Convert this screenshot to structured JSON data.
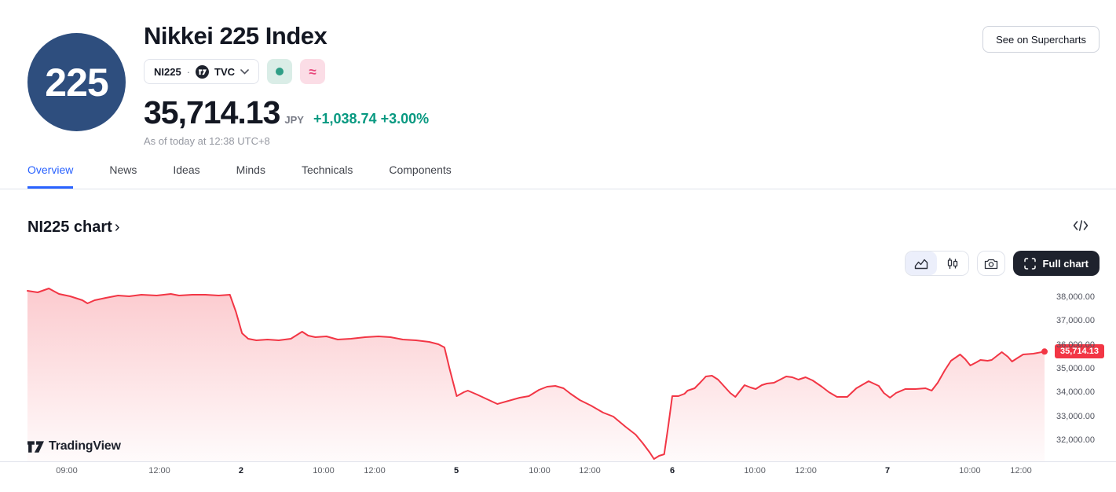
{
  "header": {
    "logo_text": "225",
    "title": "Nikkei 225 Index",
    "symbol": "NI225",
    "symbol_separator": "·",
    "exchange": "TVC",
    "price": "35,714.13",
    "currency": "JPY",
    "change": "+1,038.74",
    "change_pct": "+3.00%",
    "as_of": "As of today at 12:38 UTC+8",
    "supercharts_button": "See on Supercharts",
    "market_status_icon": "open-dot",
    "approx_badge": "≈"
  },
  "tabs": {
    "active": "Overview",
    "items": [
      {
        "label": "Overview"
      },
      {
        "label": "News"
      },
      {
        "label": "Ideas"
      },
      {
        "label": "Minds"
      },
      {
        "label": "Technicals"
      },
      {
        "label": "Components"
      }
    ]
  },
  "section": {
    "heading": "NI225 chart",
    "chevron": "›"
  },
  "toolbar": {
    "full_chart_label": "Full chart"
  },
  "watermark": {
    "brand": "TradingView"
  },
  "colors": {
    "accent_blue": "#2962ff",
    "up_green": "#089981",
    "down_red": "#f23645",
    "logo_navy": "#2e4e7e",
    "dark_button": "#1e222d",
    "border_gray": "#e0e3eb",
    "muted_text": "#787b86"
  },
  "chart_data": {
    "type": "area",
    "title": "NI225 chart",
    "line_color": "#f23645",
    "fill_color": "#f23645",
    "grid": false,
    "legend": "none",
    "last_price": {
      "label": "35,714.13",
      "value": 35714.13
    },
    "y_axis": {
      "min": 31110,
      "max": 38527,
      "ticks": [
        {
          "label": "38,000.00",
          "value": 38000
        },
        {
          "label": "37,000.00",
          "value": 37000
        },
        {
          "label": "36,000.00",
          "value": 36000
        },
        {
          "label": "35,000.00",
          "value": 35000
        },
        {
          "label": "34,000.00",
          "value": 34000
        },
        {
          "label": "33,000.00",
          "value": 33000
        },
        {
          "label": "32,000.00",
          "value": 32000
        }
      ]
    },
    "x_ticks": [
      {
        "label": "09:00",
        "f": 0.0386,
        "day": false
      },
      {
        "label": "12:00",
        "f": 0.1297,
        "day": false
      },
      {
        "label": "2",
        "f": 0.21,
        "day": true
      },
      {
        "label": "10:00",
        "f": 0.2911,
        "day": false
      },
      {
        "label": "12:00",
        "f": 0.3413,
        "day": false
      },
      {
        "label": "5",
        "f": 0.4216,
        "day": true
      },
      {
        "label": "10:00",
        "f": 0.5035,
        "day": false
      },
      {
        "label": "12:00",
        "f": 0.5529,
        "day": false
      },
      {
        "label": "6",
        "f": 0.634,
        "day": true
      },
      {
        "label": "10:00",
        "f": 0.7151,
        "day": false
      },
      {
        "label": "12:00",
        "f": 0.7653,
        "day": false
      },
      {
        "label": "7",
        "f": 0.8456,
        "day": true
      },
      {
        "label": "10:00",
        "f": 0.9266,
        "day": false
      },
      {
        "label": "12:00",
        "f": 0.9768,
        "day": false
      }
    ],
    "points": [
      [
        0.0,
        38264
      ],
      [
        0.01,
        38198
      ],
      [
        0.021,
        38363
      ],
      [
        0.031,
        38132
      ],
      [
        0.042,
        38033
      ],
      [
        0.054,
        37868
      ],
      [
        0.059,
        37736
      ],
      [
        0.066,
        37868
      ],
      [
        0.077,
        37967
      ],
      [
        0.089,
        38066
      ],
      [
        0.1,
        38033
      ],
      [
        0.112,
        38099
      ],
      [
        0.127,
        38066
      ],
      [
        0.141,
        38132
      ],
      [
        0.149,
        38066
      ],
      [
        0.162,
        38099
      ],
      [
        0.175,
        38099
      ],
      [
        0.188,
        38066
      ],
      [
        0.199,
        38099
      ],
      [
        0.205,
        37374
      ],
      [
        0.211,
        36484
      ],
      [
        0.217,
        36253
      ],
      [
        0.225,
        36187
      ],
      [
        0.236,
        36220
      ],
      [
        0.247,
        36187
      ],
      [
        0.259,
        36253
      ],
      [
        0.27,
        36550
      ],
      [
        0.276,
        36385
      ],
      [
        0.283,
        36319
      ],
      [
        0.294,
        36352
      ],
      [
        0.305,
        36220
      ],
      [
        0.318,
        36253
      ],
      [
        0.332,
        36319
      ],
      [
        0.345,
        36352
      ],
      [
        0.357,
        36319
      ],
      [
        0.369,
        36220
      ],
      [
        0.382,
        36187
      ],
      [
        0.395,
        36121
      ],
      [
        0.404,
        36022
      ],
      [
        0.41,
        35890
      ],
      [
        0.415,
        35000
      ],
      [
        0.422,
        33846
      ],
      [
        0.429,
        34011
      ],
      [
        0.433,
        34077
      ],
      [
        0.442,
        33912
      ],
      [
        0.452,
        33714
      ],
      [
        0.462,
        33516
      ],
      [
        0.473,
        33648
      ],
      [
        0.484,
        33780
      ],
      [
        0.493,
        33846
      ],
      [
        0.503,
        34110
      ],
      [
        0.511,
        34242
      ],
      [
        0.519,
        34275
      ],
      [
        0.527,
        34176
      ],
      [
        0.534,
        33945
      ],
      [
        0.543,
        33681
      ],
      [
        0.554,
        33450
      ],
      [
        0.566,
        33154
      ],
      [
        0.576,
        32989
      ],
      [
        0.588,
        32560
      ],
      [
        0.598,
        32231
      ],
      [
        0.605,
        31868
      ],
      [
        0.612,
        31472
      ],
      [
        0.616,
        31209
      ],
      [
        0.621,
        31340
      ],
      [
        0.626,
        31406
      ],
      [
        0.63,
        32593
      ],
      [
        0.634,
        33846
      ],
      [
        0.64,
        33846
      ],
      [
        0.646,
        33945
      ],
      [
        0.649,
        34077
      ],
      [
        0.656,
        34176
      ],
      [
        0.662,
        34440
      ],
      [
        0.667,
        34671
      ],
      [
        0.673,
        34704
      ],
      [
        0.679,
        34539
      ],
      [
        0.686,
        34209
      ],
      [
        0.691,
        33978
      ],
      [
        0.696,
        33813
      ],
      [
        0.705,
        34308
      ],
      [
        0.711,
        34209
      ],
      [
        0.716,
        34143
      ],
      [
        0.722,
        34308
      ],
      [
        0.727,
        34374
      ],
      [
        0.734,
        34407
      ],
      [
        0.74,
        34539
      ],
      [
        0.746,
        34671
      ],
      [
        0.752,
        34638
      ],
      [
        0.758,
        34539
      ],
      [
        0.765,
        34638
      ],
      [
        0.772,
        34506
      ],
      [
        0.781,
        34242
      ],
      [
        0.788,
        34011
      ],
      [
        0.796,
        33813
      ],
      [
        0.806,
        33813
      ],
      [
        0.815,
        34176
      ],
      [
        0.827,
        34473
      ],
      [
        0.832,
        34374
      ],
      [
        0.837,
        34275
      ],
      [
        0.842,
        33978
      ],
      [
        0.848,
        33780
      ],
      [
        0.854,
        33978
      ],
      [
        0.863,
        34143
      ],
      [
        0.873,
        34143
      ],
      [
        0.883,
        34176
      ],
      [
        0.889,
        34077
      ],
      [
        0.895,
        34407
      ],
      [
        0.902,
        34935
      ],
      [
        0.908,
        35330
      ],
      [
        0.917,
        35594
      ],
      [
        0.922,
        35396
      ],
      [
        0.927,
        35132
      ],
      [
        0.933,
        35264
      ],
      [
        0.937,
        35363
      ],
      [
        0.944,
        35330
      ],
      [
        0.948,
        35363
      ],
      [
        0.953,
        35528
      ],
      [
        0.958,
        35693
      ],
      [
        0.964,
        35495
      ],
      [
        0.968,
        35297
      ],
      [
        0.974,
        35462
      ],
      [
        0.979,
        35594
      ],
      [
        0.989,
        35627
      ],
      [
        1.0,
        35714
      ]
    ]
  }
}
